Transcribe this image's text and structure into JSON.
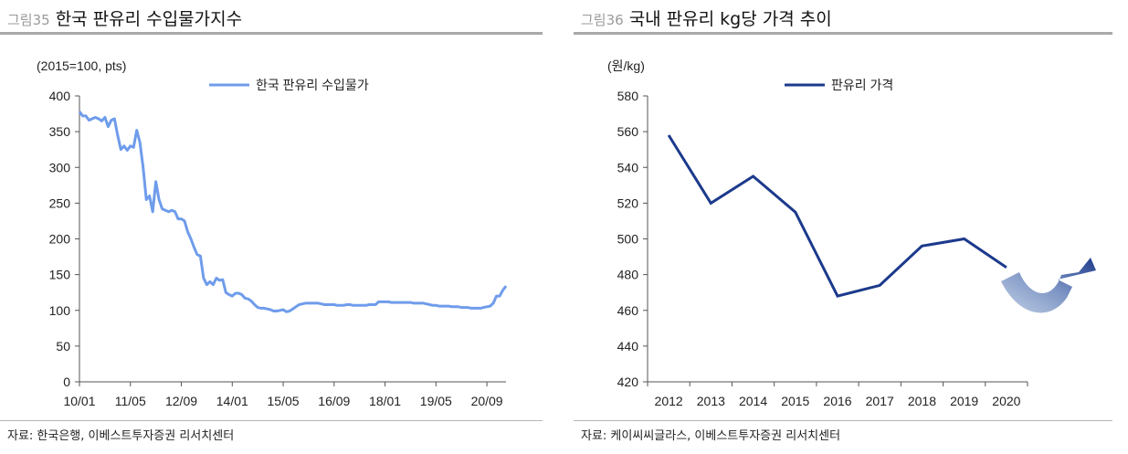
{
  "left": {
    "fig_num": "그림35",
    "title": "한국 판유리 수입물가지수",
    "source": "자료: 한국은행, 이베스트투자증권 리서치센터",
    "chart_data": {
      "type": "line",
      "unit_label": "(2015=100, pts)",
      "ylim": [
        0,
        400
      ],
      "yticks": [
        0,
        50,
        100,
        150,
        200,
        250,
        300,
        350,
        400
      ],
      "xticks": [
        "10/01",
        "11/05",
        "12/09",
        "14/01",
        "15/05",
        "16/09",
        "18/01",
        "19/05",
        "20/09"
      ],
      "xlim": [
        "2010-01",
        "2021-03"
      ],
      "grid": false,
      "legend": "top-center",
      "series": [
        {
          "name": "한국 판유리 수입물가",
          "color": "#6f9ceb",
          "x": [
            "2010-01",
            "2010-02",
            "2010-03",
            "2010-04",
            "2010-05",
            "2010-06",
            "2010-07",
            "2010-08",
            "2010-09",
            "2010-10",
            "2010-11",
            "2010-12",
            "2011-01",
            "2011-02",
            "2011-03",
            "2011-04",
            "2011-05",
            "2011-06",
            "2011-07",
            "2011-08",
            "2011-09",
            "2011-10",
            "2011-11",
            "2011-12",
            "2012-01",
            "2012-02",
            "2012-03",
            "2012-04",
            "2012-05",
            "2012-06",
            "2012-07",
            "2012-08",
            "2012-09",
            "2012-10",
            "2012-11",
            "2012-12",
            "2013-01",
            "2013-02",
            "2013-03",
            "2013-04",
            "2013-05",
            "2013-06",
            "2013-07",
            "2013-08",
            "2013-09",
            "2013-10",
            "2013-11",
            "2013-12",
            "2014-01",
            "2014-02",
            "2014-03",
            "2014-04",
            "2014-05",
            "2014-06",
            "2014-07",
            "2014-08",
            "2014-09",
            "2014-10",
            "2014-11",
            "2014-12",
            "2015-01",
            "2015-02",
            "2015-03",
            "2015-04",
            "2015-05",
            "2015-06",
            "2015-07",
            "2015-08",
            "2015-09",
            "2015-10",
            "2015-11",
            "2015-12",
            "2016-01",
            "2016-02",
            "2016-03",
            "2016-04",
            "2016-05",
            "2016-06",
            "2016-07",
            "2016-08",
            "2016-09",
            "2016-10",
            "2016-11",
            "2016-12",
            "2017-01",
            "2017-02",
            "2017-03",
            "2017-04",
            "2017-05",
            "2017-06",
            "2017-07",
            "2017-08",
            "2017-09",
            "2017-10",
            "2017-11",
            "2017-12",
            "2018-01",
            "2018-02",
            "2018-03",
            "2018-04",
            "2018-05",
            "2018-06",
            "2018-07",
            "2018-08",
            "2018-09",
            "2018-10",
            "2018-11",
            "2018-12",
            "2019-01",
            "2019-02",
            "2019-03",
            "2019-04",
            "2019-05",
            "2019-06",
            "2019-07",
            "2019-08",
            "2019-09",
            "2019-10",
            "2019-11",
            "2019-12",
            "2020-01",
            "2020-02",
            "2020-03",
            "2020-04",
            "2020-05",
            "2020-06",
            "2020-07",
            "2020-08",
            "2020-09",
            "2020-10",
            "2020-11",
            "2020-12",
            "2021-01",
            "2021-02",
            "2021-03"
          ],
          "values": [
            378,
            372,
            372,
            366,
            368,
            370,
            368,
            365,
            370,
            357,
            366,
            368,
            345,
            325,
            330,
            324,
            330,
            328,
            352,
            335,
            300,
            255,
            260,
            238,
            280,
            255,
            242,
            240,
            238,
            240,
            238,
            228,
            228,
            225,
            210,
            200,
            188,
            178,
            176,
            145,
            136,
            140,
            136,
            145,
            142,
            143,
            125,
            122,
            120,
            124,
            124,
            122,
            117,
            116,
            113,
            108,
            104,
            103,
            103,
            102,
            101,
            99,
            99,
            100,
            101,
            98,
            99,
            102,
            105,
            108,
            109,
            110,
            110,
            110,
            110,
            110,
            109,
            108,
            108,
            108,
            108,
            107,
            107,
            107,
            108,
            108,
            107,
            107,
            107,
            107,
            107,
            108,
            108,
            108,
            112,
            112,
            112,
            112,
            111,
            111,
            111,
            111,
            111,
            111,
            111,
            110,
            110,
            110,
            110,
            109,
            108,
            107,
            107,
            106,
            106,
            106,
            106,
            105,
            105,
            105,
            104,
            104,
            104,
            103,
            103,
            103,
            103,
            104,
            105,
            106,
            110,
            120,
            120,
            128,
            134
          ]
        }
      ]
    }
  },
  "right": {
    "fig_num": "그림36",
    "title": "국내 판유리 kg당 가격 추이",
    "source": "자료: 케이씨씨글라스, 이베스트투자증권 리서치센터",
    "chart_data": {
      "type": "line",
      "unit_label": "(원/kg)",
      "ylim": [
        420,
        580
      ],
      "yticks": [
        420,
        440,
        460,
        480,
        500,
        520,
        540,
        560,
        580
      ],
      "categories": [
        "2012",
        "2013",
        "2014",
        "2015",
        "2016",
        "2017",
        "2018",
        "2019",
        "2020"
      ],
      "grid": false,
      "legend": "top-center",
      "series": [
        {
          "name": "판유리 가격",
          "color": "#1c3a8c",
          "values": [
            558,
            520,
            535,
            515,
            468,
            474,
            496,
            500,
            484
          ]
        }
      ]
    }
  }
}
